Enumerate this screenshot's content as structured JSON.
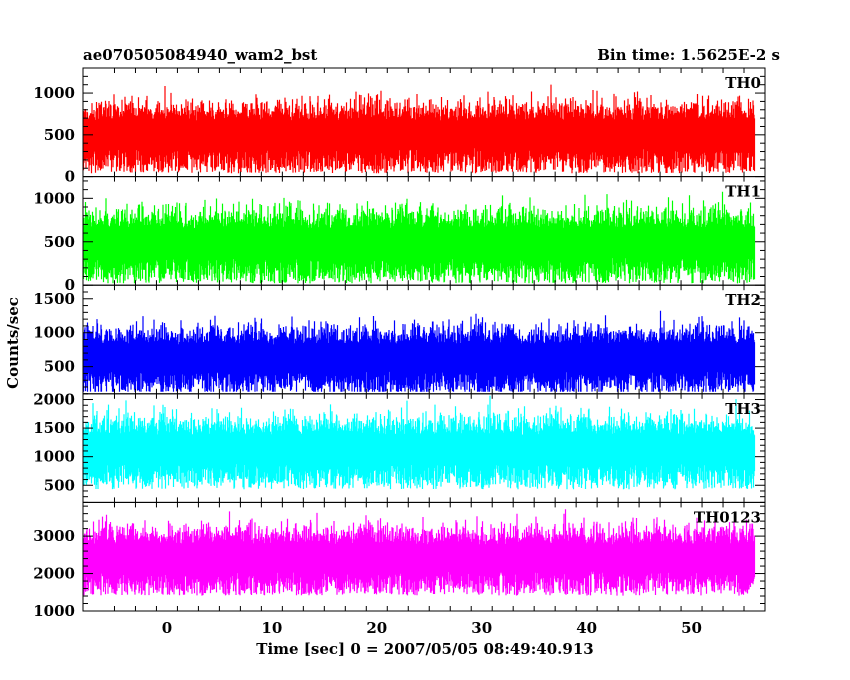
{
  "chart_data": {
    "type": "line",
    "title_left": "ae070505084940_wam2_bst",
    "title_right": "Bin time: 1.5625E-2 s",
    "xlabel": "Time [sec] 0 = 2007/05/05 08:49:40.913",
    "ylabel": "Counts/sec",
    "xlim": [
      -8,
      57
    ],
    "x_data_range": [
      -8,
      56
    ],
    "x_ticks": [
      0,
      10,
      20,
      30,
      40,
      50
    ],
    "x_tick_labels": [
      "0",
      "10",
      "20",
      "30",
      "40",
      "50"
    ],
    "panels": [
      {
        "name": "TH0",
        "color": "#ff0000",
        "ylim": [
          0,
          1300
        ],
        "y_ticks": [
          0,
          500,
          1000
        ],
        "y_tick_labels": [
          "0",
          "500",
          "1000"
        ],
        "mean": 520,
        "spread": 300,
        "min": 0,
        "max": 1300
      },
      {
        "name": "TH1",
        "color": "#00ff00",
        "ylim": [
          0,
          1250
        ],
        "y_ticks": [
          0,
          500,
          1000
        ],
        "y_tick_labels": [
          "0",
          "500",
          "1000"
        ],
        "mean": 500,
        "spread": 300,
        "min": 0,
        "max": 1250
      },
      {
        "name": "TH2",
        "color": "#0000ff",
        "ylim": [
          100,
          1700
        ],
        "y_ticks": [
          500,
          1000,
          1500
        ],
        "y_tick_labels": [
          "500",
          "1000",
          "1500"
        ],
        "mean": 650,
        "spread": 350,
        "min": 130,
        "max": 1650
      },
      {
        "name": "TH3",
        "color": "#00ffff",
        "ylim": [
          200,
          2100
        ],
        "y_ticks": [
          500,
          1000,
          1500,
          2000
        ],
        "y_tick_labels": [
          "500",
          "1000",
          "1500",
          "2000"
        ],
        "mean": 1150,
        "spread": 450,
        "min": 250,
        "max": 2100
      },
      {
        "name": "TH0123",
        "color": "#ff00ff",
        "ylim": [
          1000,
          3900
        ],
        "y_ticks": [
          1000,
          2000,
          3000
        ],
        "y_tick_labels": [
          "1000",
          "2000",
          "3000"
        ],
        "mean": 2450,
        "spread": 650,
        "min": 1050,
        "max": 3850
      }
    ]
  }
}
